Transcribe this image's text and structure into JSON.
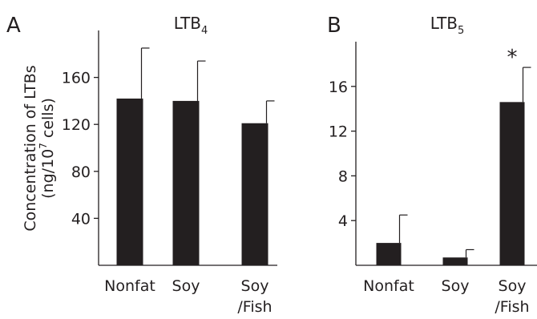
{
  "chart_data": [
    {
      "type": "bar",
      "panel": "A",
      "title": "LTB",
      "title_sub": "4",
      "ylabel_line1": "Concentration of LTBs",
      "ylabel_line2_pre": "(ng/10",
      "ylabel_line2_sup": "7",
      "ylabel_line2_post": " cells)",
      "ylim": [
        0,
        200
      ],
      "yticks": [
        40,
        80,
        120,
        160
      ],
      "categories": [
        [
          "Nonfat"
        ],
        [
          "Soy"
        ],
        [
          "Soy",
          "/Fish"
        ]
      ],
      "values": [
        142,
        140,
        121
      ],
      "errors": [
        43,
        34,
        19
      ],
      "significance": [
        "",
        "",
        ""
      ]
    },
    {
      "type": "bar",
      "panel": "B",
      "title": "LTB",
      "title_sub": "5",
      "ylim": [
        0,
        20
      ],
      "yticks": [
        4,
        8,
        12,
        16
      ],
      "categories": [
        [
          "Nonfat"
        ],
        [
          "Soy"
        ],
        [
          "Soy",
          "/Fish"
        ]
      ],
      "values": [
        2.0,
        0.7,
        14.6
      ],
      "errors": [
        2.5,
        0.7,
        3.1
      ],
      "significance": [
        "",
        "",
        "*"
      ]
    }
  ]
}
